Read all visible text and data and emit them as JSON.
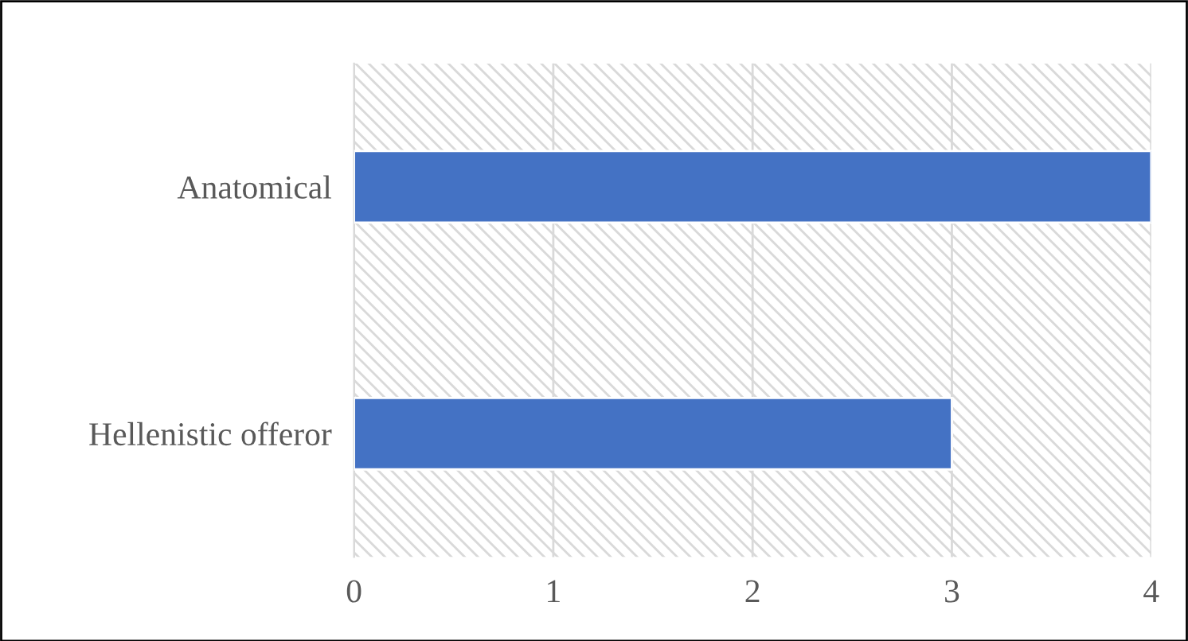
{
  "chart_data": {
    "type": "bar",
    "orientation": "horizontal",
    "categories": [
      "Anatomical",
      "Hellenistic offeror"
    ],
    "values": [
      4,
      3
    ],
    "color": "#4472c4",
    "xlim": [
      0,
      4
    ],
    "xticks": [
      0,
      1,
      2,
      3,
      4
    ],
    "grid": "x",
    "legend": false
  }
}
